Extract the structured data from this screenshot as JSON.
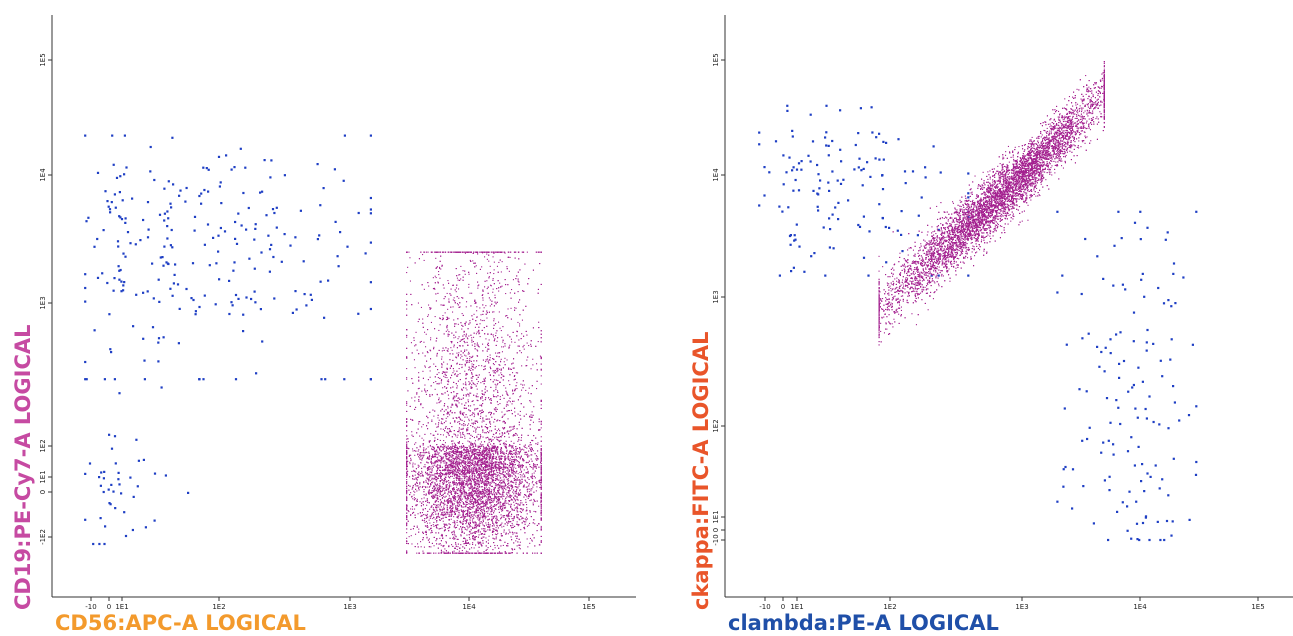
{
  "chart_data": [
    {
      "type": "scatter",
      "xlabel": "CD56:APC-A LOGICAL",
      "ylabel": "CD19:PE-Cy7-A LOGICAL",
      "xlabel_color": "#f39a2c",
      "ylabel_color": "#c64aa2",
      "x_scale": "logical",
      "y_scale": "logical",
      "x_ticks": [
        "-10",
        "0",
        "1E1",
        "1E2",
        "1E3",
        "1E4",
        "1E5"
      ],
      "y_ticks": [
        "-1E2",
        "0",
        "1E1",
        "1E2",
        "1E3",
        "1E4",
        "1E5"
      ],
      "grid": false,
      "series": [
        {
          "color": "#1f3fc4",
          "count": 300,
          "clusters": [
            {
              "x": [
                -15,
                1500
              ],
              "y": [
                300,
                22000
              ],
              "weight": 0.85
            },
            {
              "x": [
                -15,
                60
              ],
              "y": [
                -150,
                300
              ],
              "weight": 0.15
            }
          ]
        },
        {
          "color": "#a3208f",
          "count": 9000,
          "clusters": [
            {
              "x": [
                3000,
                40000
              ],
              "y": [
                -250,
                2500
              ],
              "weight": 1.0
            }
          ]
        }
      ]
    },
    {
      "type": "scatter",
      "xlabel": "clambda:PE-A LOGICAL",
      "ylabel": "ckappa:FITC-A LOGICAL",
      "xlabel_color": "#1f4fa8",
      "ylabel_color": "#e9552a",
      "x_scale": "logical",
      "y_scale": "logical",
      "x_ticks": [
        "-10",
        "0",
        "1E1",
        "1E2",
        "1E3",
        "1E4",
        "1E5"
      ],
      "y_ticks": [
        "-10",
        "0",
        "1E1",
        "1E2",
        "1E3",
        "1E4",
        "1E5"
      ],
      "grid": false,
      "series": [
        {
          "color": "#1f3fc4",
          "count": 280,
          "clusters": [
            {
              "x": [
                -15,
                400
              ],
              "y": [
                1500,
                40000
              ],
              "weight": 0.5
            },
            {
              "x": [
                2000,
                30000
              ],
              "y": [
                -10,
                5000
              ],
              "weight": 0.5
            }
          ]
        },
        {
          "color": "#a3208f",
          "count": 9000,
          "clusters": [
            {
              "x": [
                80,
                5000
              ],
              "y": [
                800,
                50000
              ],
              "weight": 1.0
            }
          ]
        }
      ]
    }
  ]
}
